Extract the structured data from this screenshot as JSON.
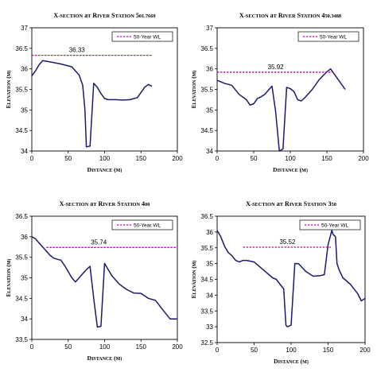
{
  "chart_data": [
    {
      "type": "line",
      "title": "X-Section at River Station 501.7669",
      "xlabel": "Distance (m)",
      "ylabel": "Elevation (m)",
      "xlim": [
        0,
        200
      ],
      "ylim": [
        34,
        37
      ],
      "xticks": [
        0,
        50,
        100,
        150,
        200
      ],
      "yticks": [
        34,
        34.5,
        35,
        35.5,
        36,
        36.5,
        37
      ],
      "tick_labels_x": [
        "0",
        "50",
        "100",
        "150",
        "200"
      ],
      "tick_labels_y": [
        "34",
        "34.5",
        "35",
        "35.5",
        "36",
        "36.5",
        "37"
      ],
      "grid": false,
      "legend_position": "top-right",
      "series": [
        {
          "name": "",
          "color": "#1a1a6e",
          "style": "solid",
          "x": [
            0,
            5,
            10,
            15,
            25,
            40,
            55,
            65,
            70,
            73,
            75,
            80,
            85,
            90,
            95,
            100,
            105,
            115,
            125,
            135,
            145,
            155,
            160,
            165
          ],
          "y": [
            35.83,
            35.95,
            36.1,
            36.2,
            36.17,
            36.12,
            36.05,
            35.85,
            35.6,
            35.0,
            34.1,
            34.12,
            35.65,
            35.55,
            35.4,
            35.28,
            35.25,
            35.25,
            35.24,
            35.25,
            35.3,
            35.55,
            35.62,
            35.58
          ]
        },
        {
          "name": "50-Year WL",
          "color": "#cc00cc",
          "style": "dashed",
          "x": [
            0,
            165
          ],
          "y": [
            36.33,
            36.33
          ]
        }
      ],
      "annotations": [
        {
          "text": "36.33",
          "x": 62,
          "y": 36.33
        }
      ]
    },
    {
      "type": "line",
      "title": "X-Section at River Station 450.3488",
      "xlabel": "Distance (m)",
      "ylabel": "Elevation (m)",
      "xlim": [
        0,
        200
      ],
      "ylim": [
        34,
        37
      ],
      "xticks": [
        0,
        50,
        100,
        150,
        200
      ],
      "yticks": [
        34,
        34.5,
        35,
        35.5,
        36,
        36.5,
        37
      ],
      "tick_labels_x": [
        "0",
        "50",
        "100",
        "150",
        "200"
      ],
      "tick_labels_y": [
        "34",
        "34.5",
        "35",
        "35.5",
        "36",
        "36.5",
        "37"
      ],
      "grid": false,
      "legend_position": "top-right",
      "series": [
        {
          "name": "",
          "color": "#1a1a6e",
          "style": "solid",
          "x": [
            0,
            10,
            20,
            30,
            40,
            45,
            50,
            55,
            60,
            65,
            70,
            75,
            80,
            85,
            90,
            95,
            100,
            105,
            110,
            115,
            120,
            130,
            140,
            150,
            155,
            165,
            175
          ],
          "y": [
            35.72,
            35.65,
            35.6,
            35.38,
            35.25,
            35.12,
            35.15,
            35.28,
            35.32,
            35.38,
            35.48,
            35.58,
            34.95,
            34.0,
            34.05,
            35.55,
            35.52,
            35.45,
            35.25,
            35.22,
            35.3,
            35.5,
            35.75,
            35.93,
            36.0,
            35.75,
            35.5
          ]
        },
        {
          "name": "50-Year WL",
          "color": "#cc00cc",
          "style": "dashed",
          "x": [
            0,
            160
          ],
          "y": [
            35.92,
            35.92
          ]
        }
      ],
      "annotations": [
        {
          "text": "35.92",
          "x": 80,
          "y": 35.92
        }
      ]
    },
    {
      "type": "line",
      "title": "X-Section at River Station 400",
      "xlabel": "Distance (m)",
      "ylabel": "Elevation (m)",
      "xlim": [
        0,
        200
      ],
      "ylim": [
        33.5,
        36.5
      ],
      "xticks": [
        0,
        50,
        100,
        150,
        200
      ],
      "yticks": [
        33.5,
        34,
        34.5,
        35,
        35.5,
        36,
        36.5
      ],
      "tick_labels_x": [
        "0",
        "50",
        "100",
        "150",
        "200"
      ],
      "tick_labels_y": [
        "33.5",
        "34",
        "34.5",
        "35",
        "35.5",
        "36",
        "36.5"
      ],
      "grid": false,
      "legend_position": "top-right",
      "series": [
        {
          "name": "",
          "color": "#1a1a6e",
          "style": "solid",
          "x": [
            0,
            5,
            10,
            15,
            20,
            25,
            30,
            35,
            40,
            45,
            50,
            55,
            60,
            65,
            70,
            75,
            80,
            85,
            90,
            95,
            100,
            105,
            110,
            115,
            120,
            130,
            140,
            150,
            160,
            170,
            180,
            190,
            200
          ],
          "y": [
            36.0,
            35.95,
            35.85,
            35.75,
            35.65,
            35.55,
            35.48,
            35.45,
            35.43,
            35.3,
            35.15,
            35.0,
            34.9,
            35.0,
            35.1,
            35.2,
            35.28,
            34.5,
            33.8,
            33.82,
            35.35,
            35.2,
            35.05,
            34.95,
            34.85,
            34.72,
            34.63,
            34.62,
            34.5,
            34.45,
            34.22,
            34.0,
            34.0
          ]
        },
        {
          "name": "50-Year WL",
          "color": "#cc00cc",
          "style": "dashed",
          "x": [
            20,
            200
          ],
          "y": [
            35.74,
            35.74
          ]
        }
      ],
      "annotations": [
        {
          "text": "35.74",
          "x": 92,
          "y": 35.74
        }
      ]
    },
    {
      "type": "line",
      "title": "X-Section at River Station 350",
      "xlabel": "Distance (m)",
      "ylabel": "Elevation (m)",
      "xlim": [
        0,
        200
      ],
      "ylim": [
        32.5,
        36.5
      ],
      "xticks": [
        0,
        50,
        100,
        150,
        200
      ],
      "yticks": [
        32.5,
        33,
        33.5,
        34,
        34.5,
        35,
        35.5,
        36,
        36.5
      ],
      "tick_labels_x": [
        "0",
        "50",
        "100",
        "150",
        "200"
      ],
      "tick_labels_y": [
        "32.5",
        "33",
        "33.5",
        "34",
        "34.5",
        "35",
        "35.5",
        "36",
        "36.5"
      ],
      "grid": false,
      "legend_position": "top-right",
      "series": [
        {
          "name": "",
          "color": "#1a1a6e",
          "style": "solid",
          "x": [
            0,
            5,
            10,
            15,
            20,
            25,
            30,
            35,
            40,
            50,
            55,
            60,
            65,
            70,
            75,
            80,
            85,
            90,
            93,
            95,
            100,
            105,
            110,
            120,
            130,
            140,
            145,
            150,
            155,
            157,
            160,
            162,
            165,
            170,
            180,
            190,
            195,
            200
          ],
          "y": [
            36.05,
            35.85,
            35.55,
            35.35,
            35.25,
            35.1,
            35.05,
            35.1,
            35.1,
            35.05,
            34.95,
            34.85,
            34.75,
            34.65,
            34.55,
            34.5,
            34.35,
            34.2,
            33.05,
            33.0,
            33.05,
            35.0,
            35.0,
            34.75,
            34.6,
            34.62,
            34.65,
            35.6,
            36.05,
            35.92,
            35.85,
            35.0,
            34.8,
            34.55,
            34.35,
            34.05,
            33.82,
            33.9
          ]
        },
        {
          "name": "50-Year WL",
          "color": "#cc00cc",
          "style": "dashed",
          "x": [
            35,
            155
          ],
          "y": [
            35.52,
            35.52
          ]
        }
      ],
      "annotations": [
        {
          "text": "35.52",
          "x": 95,
          "y": 35.52
        }
      ]
    }
  ]
}
